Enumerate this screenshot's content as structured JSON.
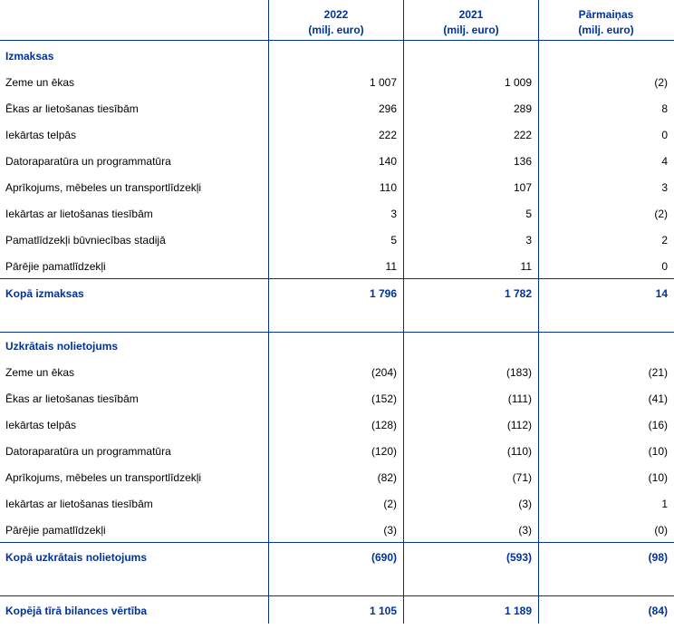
{
  "header": {
    "columns": [
      {
        "year": "2022",
        "unit": "(milj. euro)"
      },
      {
        "year": "2021",
        "unit": "(milj. euro)"
      },
      {
        "year": "Pārmaiņas",
        "unit": "(milj. euro)"
      }
    ]
  },
  "cost": {
    "title": "Izmaksas",
    "rows": [
      {
        "label": "Zeme un ēkas",
        "v2022": "1 007",
        "v2021": "1 009",
        "change": "(2)"
      },
      {
        "label": "Ēkas ar lietošanas tiesībām",
        "v2022": "296",
        "v2021": "289",
        "change": "8"
      },
      {
        "label": "Iekārtas telpās",
        "v2022": "222",
        "v2021": "222",
        "change": "0"
      },
      {
        "label": "Datoraparatūra un programmatūra",
        "v2022": "140",
        "v2021": "136",
        "change": "4"
      },
      {
        "label": "Aprīkojums, mēbeles un transportlīdzekļi",
        "v2022": "110",
        "v2021": "107",
        "change": "3"
      },
      {
        "label": "Iekārtas ar lietošanas tiesībām",
        "v2022": "3",
        "v2021": "5",
        "change": "(2)"
      },
      {
        "label": "Pamatlīdzekļi būvniecības stadijā",
        "v2022": "5",
        "v2021": "3",
        "change": "2"
      },
      {
        "label": "Pārējie pamatlīdzekļi",
        "v2022": "11",
        "v2021": "11",
        "change": "0"
      }
    ],
    "total": {
      "label": "Kopā izmaksas",
      "v2022": "1 796",
      "v2021": "1 782",
      "change": "14"
    }
  },
  "depreciation": {
    "title": "Uzkrātais nolietojums",
    "rows": [
      {
        "label": "Zeme un ēkas",
        "v2022": "(204)",
        "v2021": "(183)",
        "change": "(21)"
      },
      {
        "label": "Ēkas ar lietošanas tiesībām",
        "v2022": "(152)",
        "v2021": "(111)",
        "change": "(41)"
      },
      {
        "label": "Iekārtas telpās",
        "v2022": "(128)",
        "v2021": "(112)",
        "change": "(16)"
      },
      {
        "label": "Datoraparatūra un programmatūra",
        "v2022": "(120)",
        "v2021": "(110)",
        "change": "(10)"
      },
      {
        "label": "Aprīkojums, mēbeles un transportlīdzekļi",
        "v2022": "(82)",
        "v2021": "(71)",
        "change": "(10)"
      },
      {
        "label": "Iekārtas ar lietošanas tiesībām",
        "v2022": "(2)",
        "v2021": "(3)",
        "change": "1"
      },
      {
        "label": "Pārējie pamatlīdzekļi",
        "v2022": "(3)",
        "v2021": "(3)",
        "change": "(0)"
      }
    ],
    "total": {
      "label": "Kopā uzkrātais nolietojums",
      "v2022": "(690)",
      "v2021": "(593)",
      "change": "(98)"
    }
  },
  "net": {
    "label": "Kopējā tīrā bilances vērtība",
    "v2022": "1 105",
    "v2021": "1 189",
    "change": "(84)"
  },
  "colors": {
    "accent": "#003299"
  }
}
